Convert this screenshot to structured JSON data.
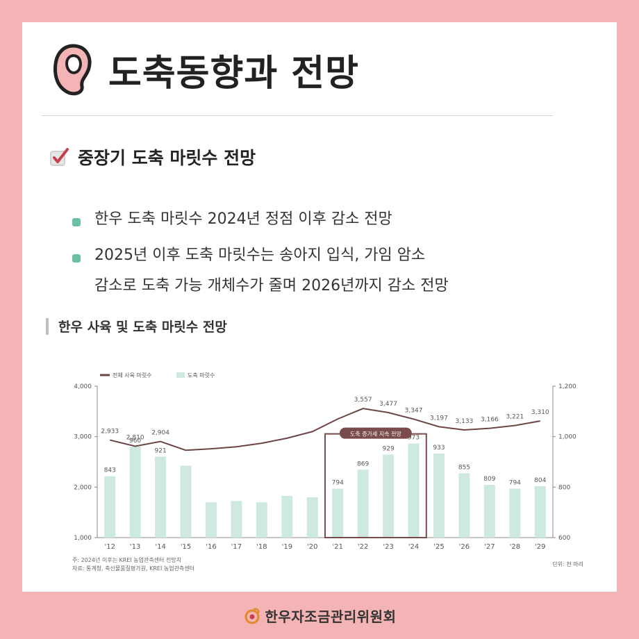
{
  "header": {
    "title": "도축동향과 전망"
  },
  "section": {
    "title": "중장기 도축 마릿수 전망"
  },
  "bullets": [
    "한우 도축 마릿수 2024년 정점 이후 감소 전망",
    "2025년 이후 도축 마릿수는 송아지 입식, 가임 암소",
    "감소로 도축 가능 개체수가 줄며 2026년까지 감소 전망"
  ],
  "chart_title": "한우 사육 및 도축 마릿수 전망",
  "chart_data": {
    "type": "bar",
    "categories": [
      "'12",
      "'13",
      "'14",
      "'15",
      "'16",
      "'17",
      "'18",
      "'19",
      "'20",
      "'21",
      "'22",
      "'23",
      "'24",
      "'25",
      "'26",
      "'27",
      "'28",
      "'29"
    ],
    "series": [
      {
        "name": "전체 사육 마릿수",
        "type": "line",
        "axis": "left",
        "values": [
          2933,
          2810,
          2904,
          2730,
          2760,
          2800,
          2870,
          2970,
          3100,
          3350,
          3557,
          3477,
          3347,
          3197,
          3133,
          3166,
          3221,
          3310
        ],
        "labels": [
          "2,933",
          "2,810",
          "2,904",
          "",
          "",
          "",
          "",
          "",
          "",
          "",
          "3,557",
          "3,477",
          "3,347",
          "3,197",
          "3,133",
          "3,166",
          "3,221",
          "3,310"
        ]
      },
      {
        "name": "도축 마릿수",
        "type": "bar",
        "axis": "right",
        "values": [
          843,
          960,
          921,
          885,
          740,
          745,
          740,
          765,
          760,
          794,
          869,
          929,
          973,
          933,
          855,
          809,
          794,
          804
        ],
        "labels": [
          "843",
          "960",
          "921",
          "",
          "",
          "",
          "",
          "",
          "",
          "794",
          "869",
          "929",
          "973",
          "933",
          "855",
          "809",
          "794",
          "804"
        ]
      }
    ],
    "left_axis": {
      "range": [
        1000,
        4000
      ],
      "ticks": [
        "1,000",
        "2,000",
        "3,000",
        "4,000"
      ]
    },
    "right_axis": {
      "range": [
        600,
        1200
      ],
      "ticks": [
        "600",
        "800",
        "1,000",
        "1,200"
      ]
    },
    "highlight": {
      "label": "도축 증가세 지속 전망",
      "from": "'21",
      "to": "'24"
    },
    "legend_position": "top-left",
    "notes": [
      "주: 2024년 이후는 KREI 농업관측센터 전망치",
      "자료: 통계청, 축산물품질평가원, KREI 농업관측센터"
    ],
    "unit": "단위: 천 마리"
  },
  "colors": {
    "line": "#6b4444",
    "bar": "#cde9e2",
    "highlight": "#7a4b4b",
    "accent_dot": "#6bbfa6",
    "background": "#f4b4b6"
  },
  "footer": {
    "org": "한우자조금관리위원회"
  }
}
